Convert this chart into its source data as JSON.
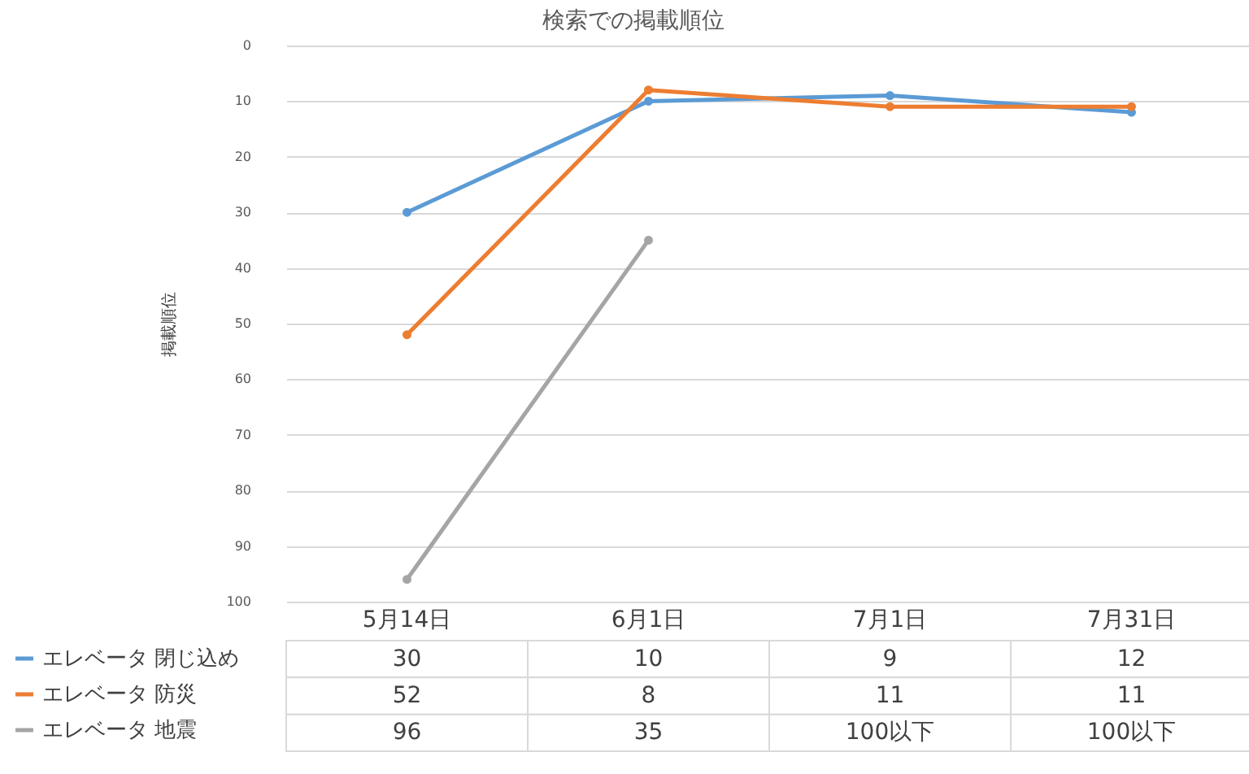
{
  "chart_data": {
    "type": "line",
    "title": "検索での掲載順位",
    "ylabel": "掲載順位",
    "categories": [
      "5月14日",
      "6月1日",
      "7月1日",
      "7月31日"
    ],
    "series": [
      {
        "name": "エレベータ 閉じ込め",
        "color": "#5b9bd5",
        "values": [
          30,
          10,
          9,
          12
        ]
      },
      {
        "name": "エレベータ 防災",
        "color": "#ed7d31",
        "values": [
          52,
          8,
          11,
          11
        ]
      },
      {
        "name": "エレベータ 地震",
        "color": "#a5a5a5",
        "values": [
          96,
          35,
          null,
          null
        ],
        "value_labels": [
          "96",
          "35",
          "100以下",
          "100以下"
        ]
      }
    ],
    "ylim": [
      100,
      0
    ],
    "yticks": [
      0,
      10,
      20,
      30,
      40,
      50,
      60,
      70,
      80,
      90,
      100
    ],
    "grid": "y",
    "marker": "circle",
    "legend": "bottom left",
    "data_labels": true
  }
}
